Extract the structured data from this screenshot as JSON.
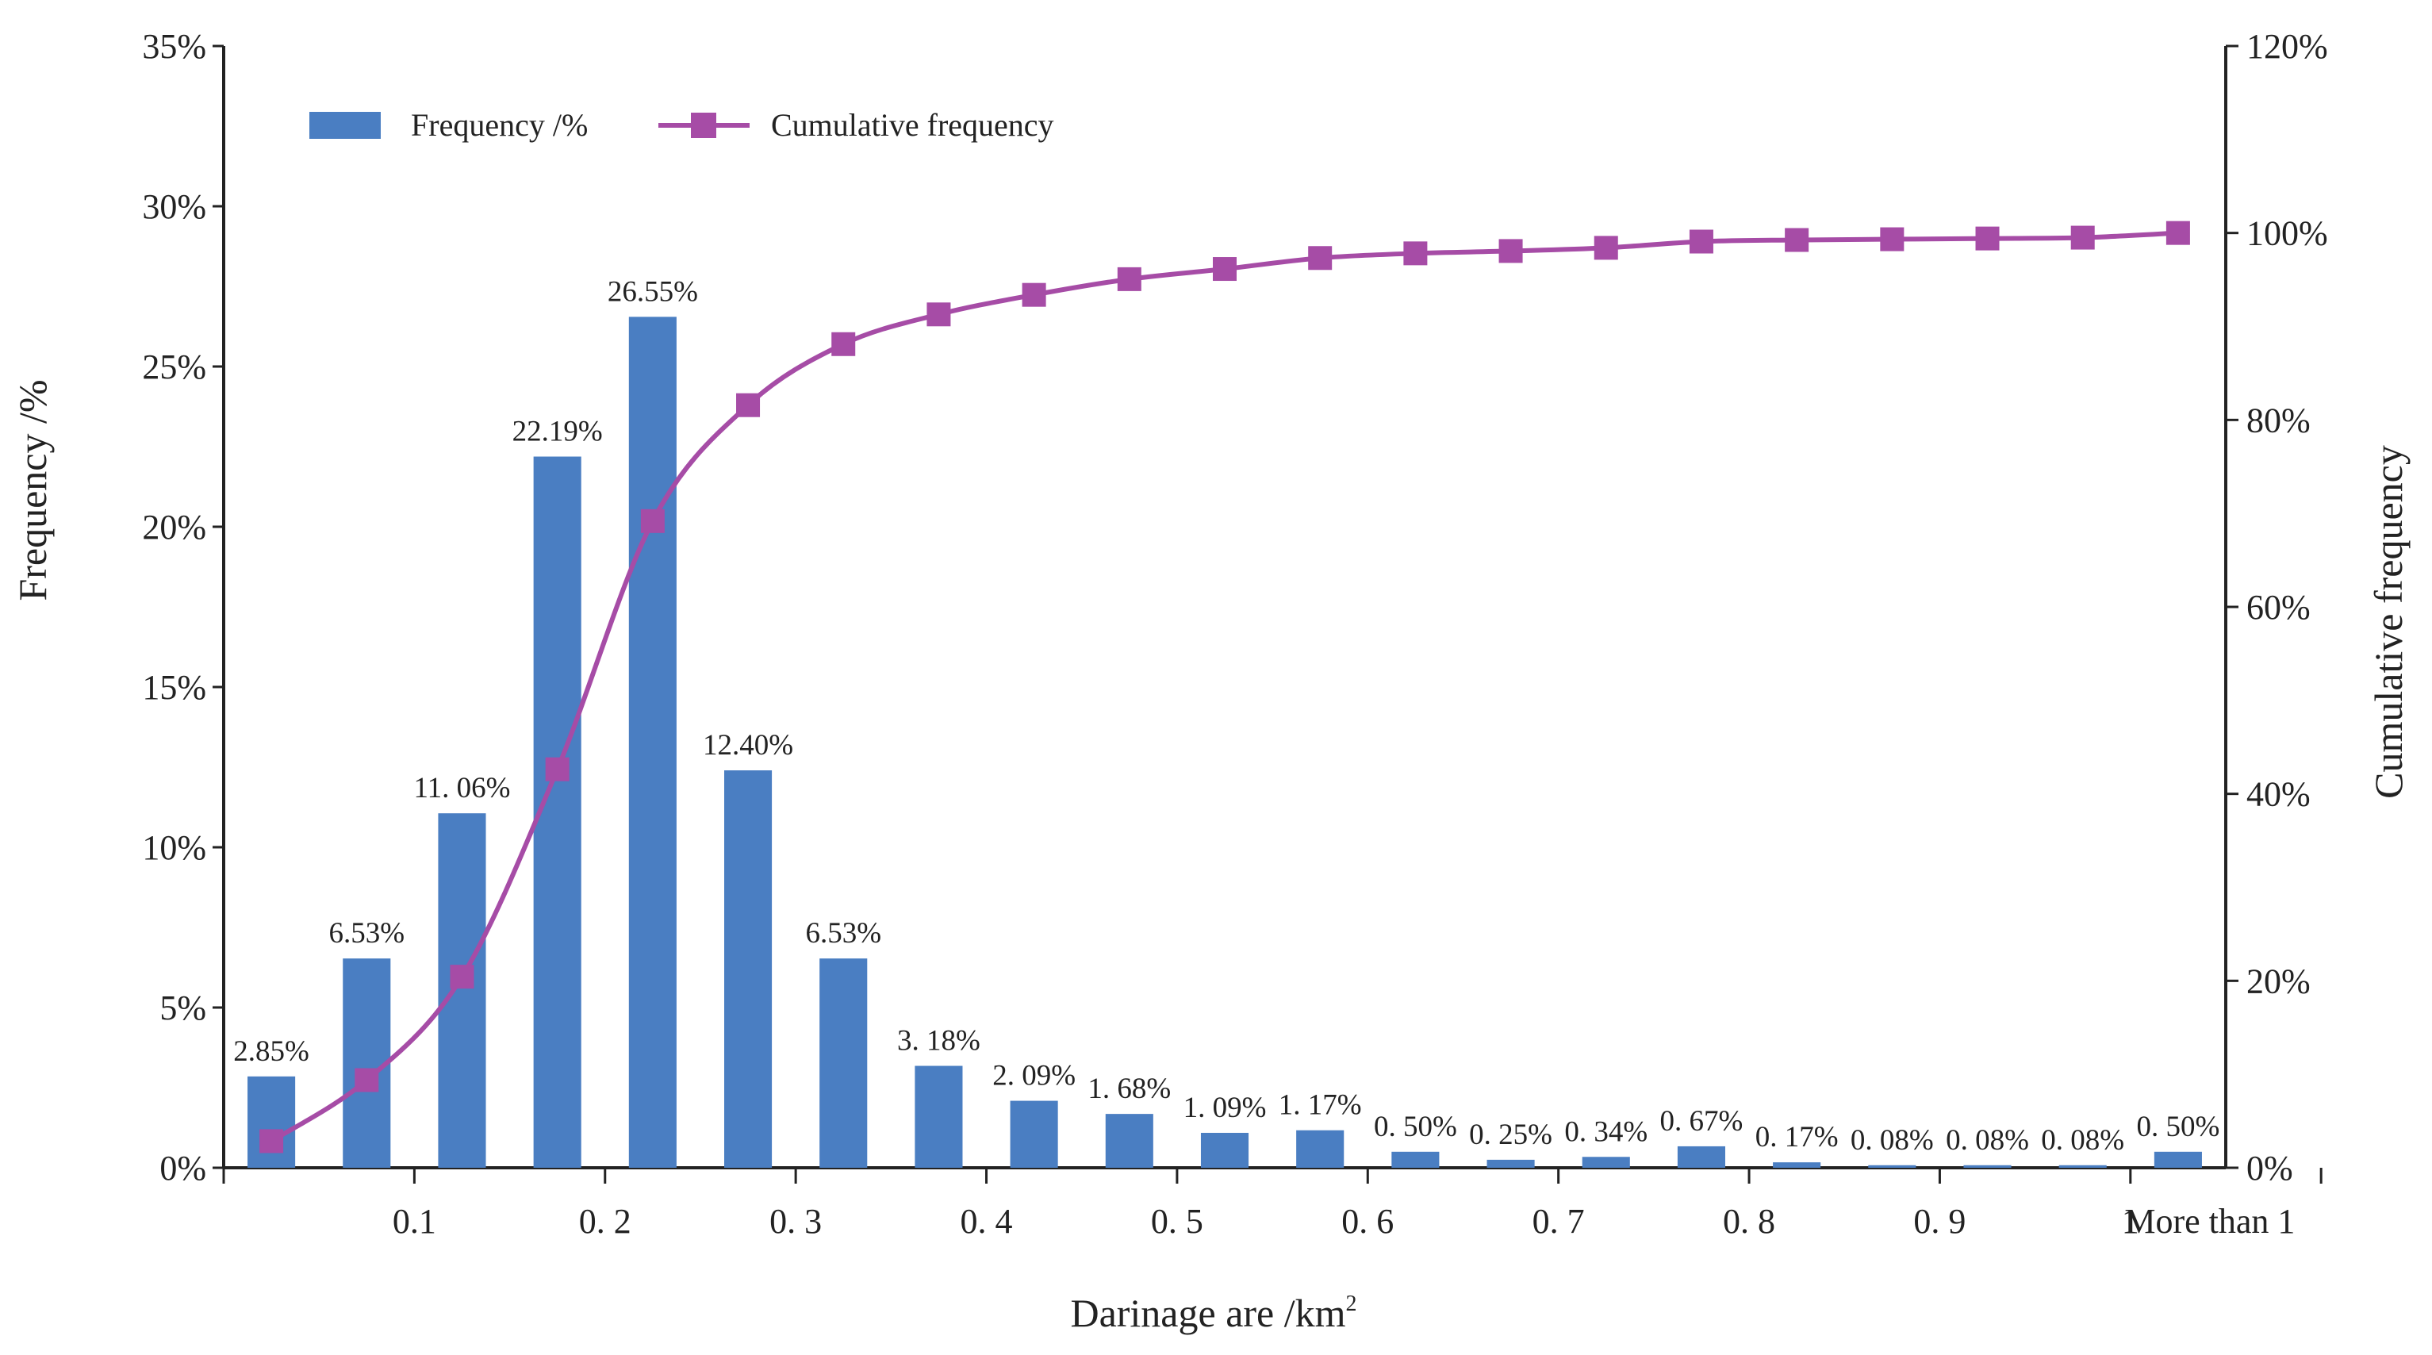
{
  "chart_data": {
    "type": "bar+line",
    "title": "",
    "xlabel": "Darinage are  /km",
    "xlabel_superscript": "2",
    "ylabel_left": "Frequency /%",
    "ylabel_right": "Cumulative frequency",
    "left_ylim": [
      0,
      35
    ],
    "left_ticks": [
      0,
      5,
      10,
      15,
      20,
      25,
      30,
      35
    ],
    "left_tick_labels": [
      "0%",
      "5%",
      "10%",
      "15%",
      "20%",
      "25%",
      "30%",
      "35%"
    ],
    "right_ylim": [
      0,
      120
    ],
    "right_ticks": [
      0,
      20,
      40,
      60,
      80,
      100,
      120
    ],
    "right_tick_labels": [
      "0%",
      "20%",
      "40%",
      "60%",
      "80%",
      "100%",
      "120%"
    ],
    "x_tick_labels": [
      "0.1",
      "0. 2",
      "0. 3",
      "0. 4",
      "0. 5",
      "0. 6",
      "0. 7",
      "0. 8",
      "0. 9",
      "1",
      "More than 1"
    ],
    "grid": false,
    "legend_position": "top-left",
    "series": [
      {
        "name": "Frequency /%",
        "kind": "bar",
        "color": "#4a7ec2",
        "values": [
          2.85,
          6.53,
          11.06,
          22.19,
          26.55,
          12.4,
          6.53,
          3.18,
          2.09,
          1.68,
          1.09,
          1.17,
          0.5,
          0.25,
          0.34,
          0.67,
          0.17,
          0.08,
          0.08,
          0.08,
          0.5
        ],
        "labels": [
          "2.85%",
          "6.53%",
          "11. 06%",
          "22.19%",
          "26.55%",
          "12.40%",
          "6.53%",
          "3. 18%",
          "2. 09%",
          "1. 68%",
          "1. 09%",
          "1. 17%",
          "0. 50%",
          "0. 25%",
          "0. 34%",
          "0. 67%",
          "0. 17%",
          "0. 08%",
          "0. 08%",
          "0. 08%",
          "0. 50%"
        ]
      },
      {
        "name": "Cumulative frequency",
        "kind": "line",
        "axis": "right",
        "color": "#a64ca6",
        "values": [
          2.85,
          9.38,
          20.44,
          42.63,
          69.18,
          81.58,
          88.11,
          91.29,
          93.38,
          95.06,
          96.15,
          97.32,
          97.82,
          98.07,
          98.41,
          99.08,
          99.25,
          99.33,
          99.41,
          99.5,
          100.0
        ]
      }
    ]
  }
}
